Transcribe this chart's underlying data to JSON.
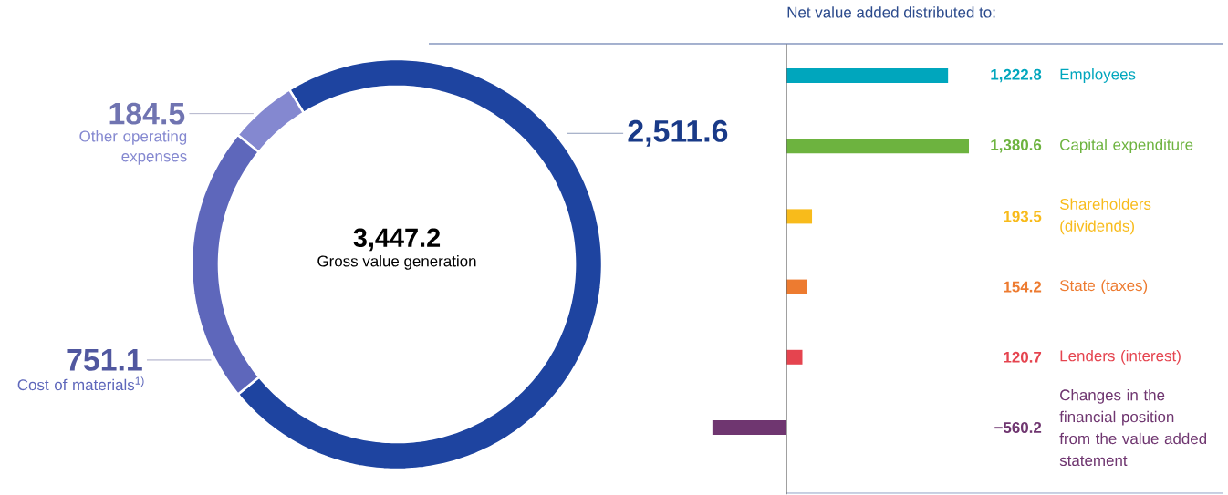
{
  "chart_data": [
    {
      "type": "donut",
      "categories": [
        null,
        "Other operating expenses",
        "Cost of materials$^{1)}$"
      ],
      "values": [
        2511.6,
        184.5,
        751.1
      ],
      "colors": [
        "#1e44a0",
        "#8488d0",
        "#5e67bb"
      ],
      "value_labels": [
        "2,511.6",
        "184.5",
        "751.1"
      ],
      "annotations": [
        "3,447.2",
        "Gross value generation"
      ]
    },
    {
      "type": "bar",
      "orientation": "horizontal",
      "title": "Net value added distributed to:",
      "categories": [
        "Employees",
        "Capital expenditure",
        "Shareholders (dividends)",
        "State (taxes)",
        "Lenders (interest)",
        "Changes in the financial position from the value added statement"
      ],
      "values": [
        1222.8,
        1380.6,
        193.5,
        154.2,
        120.7,
        -560.2
      ],
      "colors": [
        "#00a6bd",
        "#6db33f",
        "#f8bb1b",
        "#ed7b30",
        "#e5444f",
        "#6f3670"
      ],
      "value_labels": [
        "1,222.8",
        "1,380.6",
        "193.5",
        "154.2",
        "120.7",
        "−560.2"
      ]
    }
  ]
}
